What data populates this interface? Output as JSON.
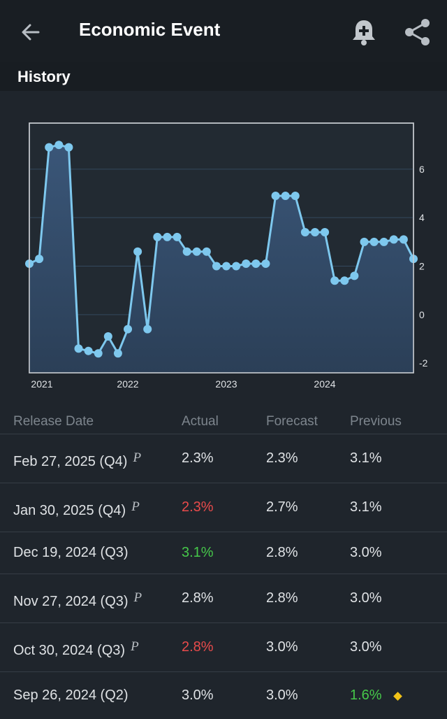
{
  "header": {
    "title": "Economic Event",
    "back_icon": "arrow-left-icon",
    "alert_icon": "bell-plus-icon",
    "share_icon": "share-icon"
  },
  "section": {
    "title": "History"
  },
  "chart_data": {
    "type": "area",
    "x_tick_labels": [
      "2021",
      "2022",
      "2023",
      "2024"
    ],
    "y_tick_labels": [
      "6",
      "4",
      "2",
      "0",
      "-2"
    ],
    "ylim": [
      -2.4,
      7.9
    ],
    "grid": true,
    "color": "#7ec8ee",
    "values": [
      2.1,
      2.3,
      6.9,
      7.0,
      6.9,
      -1.4,
      -1.5,
      -1.6,
      -0.9,
      -1.6,
      -0.6,
      2.6,
      -0.6,
      3.2,
      3.2,
      3.2,
      2.6,
      2.6,
      2.6,
      2.0,
      2.0,
      2.0,
      2.1,
      2.1,
      2.1,
      4.9,
      4.9,
      4.9,
      3.4,
      3.4,
      3.4,
      1.4,
      1.4,
      1.6,
      3.0,
      3.0,
      3.0,
      3.1,
      3.1,
      2.3
    ]
  },
  "table": {
    "columns": [
      "Release Date",
      "Actual",
      "Forecast",
      "Previous"
    ],
    "rows": [
      {
        "date": "Feb 27, 2025 (Q4)",
        "prelim": "P",
        "actual": "2.3%",
        "actual_status": "neutral",
        "forecast": "2.3%",
        "previous": "3.1%",
        "previous_status": "neutral",
        "revised": false
      },
      {
        "date": "Jan 30, 2025 (Q4)",
        "prelim": "P",
        "actual": "2.3%",
        "actual_status": "worse",
        "forecast": "2.7%",
        "previous": "3.1%",
        "previous_status": "neutral",
        "revised": false
      },
      {
        "date": "Dec 19, 2024 (Q3)",
        "prelim": "",
        "actual": "3.1%",
        "actual_status": "better",
        "forecast": "2.8%",
        "previous": "3.0%",
        "previous_status": "neutral",
        "revised": false
      },
      {
        "date": "Nov 27, 2024 (Q3)",
        "prelim": "P",
        "actual": "2.8%",
        "actual_status": "neutral",
        "forecast": "2.8%",
        "previous": "3.0%",
        "previous_status": "neutral",
        "revised": false
      },
      {
        "date": "Oct 30, 2024 (Q3)",
        "prelim": "P",
        "actual": "2.8%",
        "actual_status": "worse",
        "forecast": "3.0%",
        "previous": "3.0%",
        "previous_status": "neutral",
        "revised": false
      },
      {
        "date": "Sep 26, 2024 (Q2)",
        "prelim": "",
        "actual": "3.0%",
        "actual_status": "neutral",
        "forecast": "3.0%",
        "previous": "1.6%",
        "previous_status": "better",
        "revised": true
      }
    ]
  },
  "colors": {
    "worse": "#e84b4b",
    "better": "#46c84a",
    "revised_marker": "#f2c318"
  }
}
